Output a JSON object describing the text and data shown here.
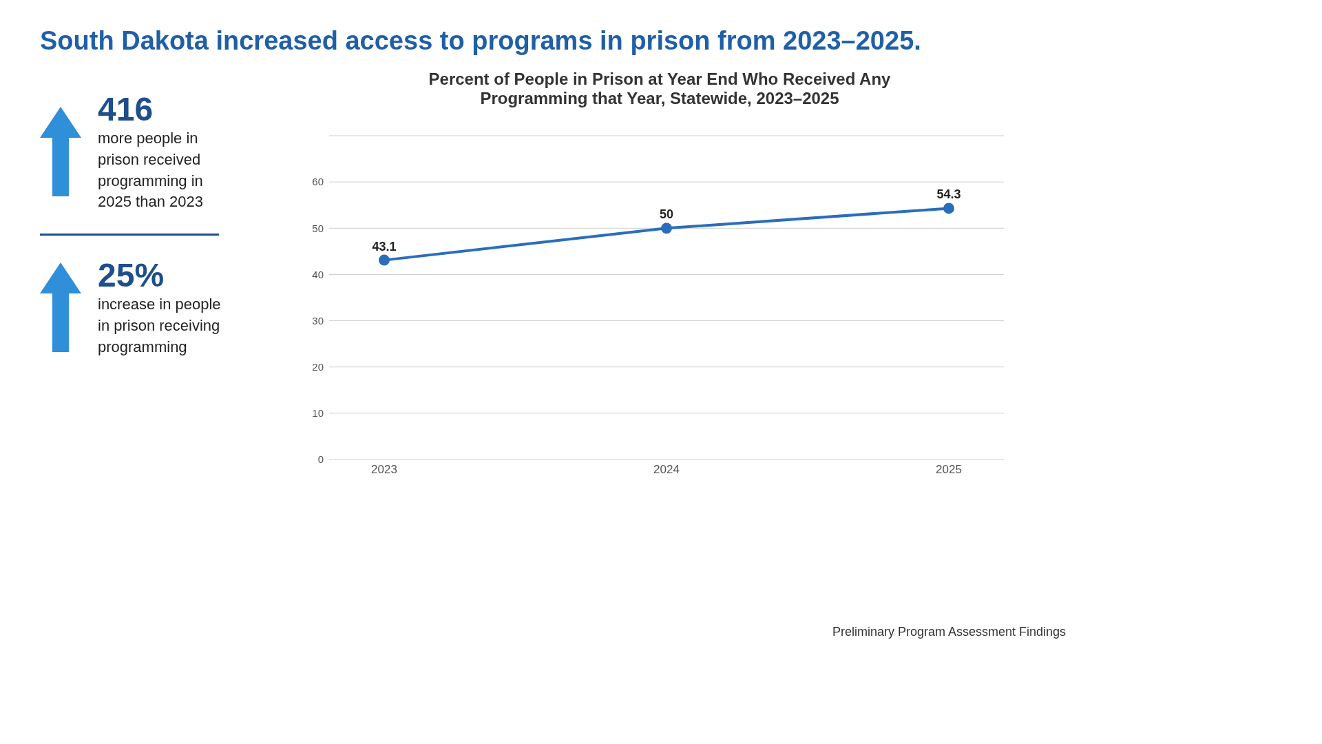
{
  "chart_data": {
    "type": "line",
    "title": "South Dakota increased access to programs in prison from 2023–2025.",
    "subtitle": "Percent of People in Prison at Year End Who Received Any Programming that Year, Statewide, 2023–2025",
    "categories": [
      "2023",
      "2024",
      "2025"
    ],
    "series": [
      {
        "color": "#2a6ebb",
        "values": [
          43.1,
          50,
          54.3
        ]
      }
    ],
    "ylim": [
      0,
      70
    ],
    "yticks": [
      0,
      10,
      20,
      30,
      40,
      50,
      60,
      {
        "value": 70,
        "label": null
      }
    ],
    "grid": "y",
    "marker": "circle",
    "line_style": "solid",
    "data_labels": true,
    "legend": false,
    "annotations": [
      "416",
      "more people in prison received programming in 2025 than 2023",
      "25%",
      "increase in people in prison receiving programming",
      "Preliminary Program Assessment Findings"
    ]
  }
}
